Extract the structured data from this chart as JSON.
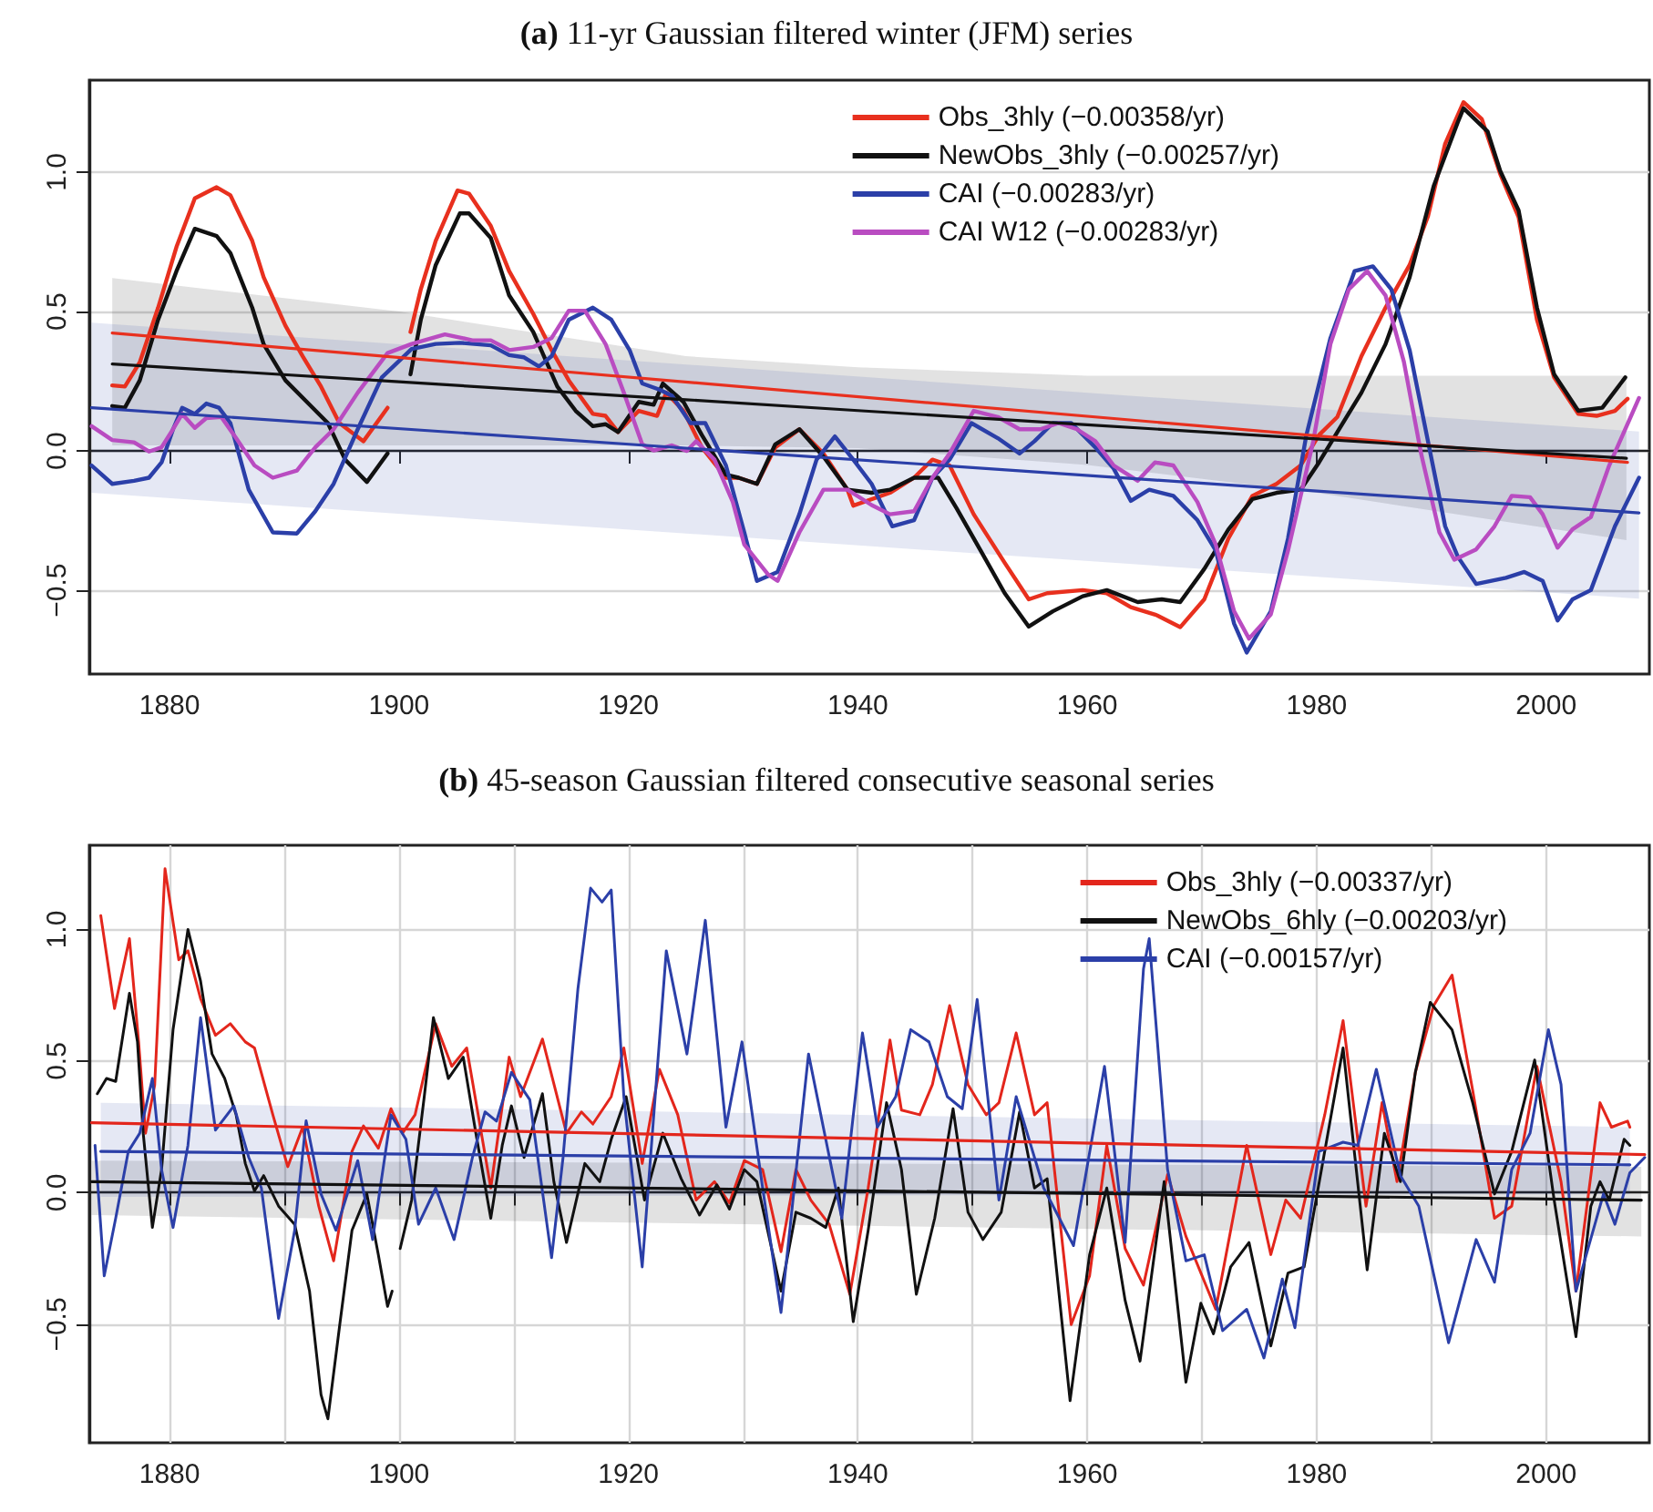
{
  "chart_data": [
    {
      "type": "line",
      "title": "(a) 11-yr Gaussian filtered winter (JFM) series",
      "xlim": [
        1873,
        2009
      ],
      "ylim": [
        -0.8,
        1.33
      ],
      "xticks": [
        1880,
        1900,
        1920,
        1940,
        1960,
        1980,
        2000
      ],
      "yticks": [
        {
          "value": -0.5,
          "label": "−0.5"
        },
        {
          "value": 0,
          "label": "0.0"
        },
        {
          "value": 0.5,
          "label": "0.5"
        },
        {
          "value": 1,
          "label": "1.0"
        }
      ],
      "grid": "y",
      "legend": "top right",
      "series": [
        {
          "name": "Obs_3hly (−0.00358/yr)",
          "color": "#e8301e",
          "x": [
            1875.0,
            1876.1,
            1877.4,
            1879.0,
            1880.6,
            1882.2,
            1884.1,
            1885.3,
            1887.2,
            1888.2,
            1890.1,
            1891.6,
            1893.2,
            1894.8,
            1896.9,
            1899.0,
            1900.0,
            1901.0,
            1901.9,
            1903.2,
            1905.1,
            1906.1,
            1908.0,
            1909.6,
            1911.7,
            1913.3,
            1914.8,
            1916.9,
            1918.0,
            1919.1,
            1920.9,
            1922.5,
            1923.3,
            1924.8,
            1926.4,
            1928.5,
            1929.6,
            1931.2,
            1932.8,
            1934.9,
            1937.0,
            1939.1,
            1939.6,
            1942.8,
            1944.9,
            1946.5,
            1948.0,
            1950.1,
            1952.8,
            1954.9,
            1956.5,
            1959.6,
            1961.7,
            1963.8,
            1966.0,
            1968.1,
            1970.2,
            1972.3,
            1974.4,
            1976.5,
            1978.6,
            1980.2,
            1981.8,
            1983.9,
            1986.0,
            1988.1,
            1989.7,
            1991.2,
            1992.8,
            1994.4,
            1996.0,
            1997.6,
            1999.2,
            2000.7,
            2002.8,
            2004.4,
            2006.0,
            2007.1
          ],
          "values": [
            0.235,
            0.231,
            0.318,
            0.514,
            0.732,
            0.906,
            0.946,
            0.917,
            0.754,
            0.623,
            0.449,
            0.34,
            0.231,
            0.1,
            0.035,
            0.155,
            null,
            0.427,
            0.58,
            0.754,
            0.934,
            0.923,
            0.807,
            0.645,
            0.492,
            0.362,
            0.253,
            0.133,
            0.126,
            0.068,
            0.144,
            0.126,
            0.209,
            0.144,
            0.013,
            -0.096,
            -0.096,
            -0.118,
            0.013,
            0.078,
            -0.009,
            -0.139,
            -0.196,
            -0.15,
            -0.096,
            -0.031,
            -0.052,
            -0.227,
            -0.401,
            -0.532,
            -0.51,
            -0.499,
            -0.51,
            -0.56,
            -0.588,
            -0.632,
            -0.532,
            -0.314,
            -0.161,
            -0.118,
            -0.052,
            0.057,
            0.122,
            0.34,
            0.514,
            0.667,
            0.842,
            1.102,
            1.251,
            1.19,
            0.993,
            0.839,
            0.471,
            0.264,
            0.133,
            0.126,
            0.144,
            0.187
          ]
        },
        {
          "name": "NewObs_3hly (−0.00257/yr)",
          "color": "#111111",
          "x": [
            1875.0,
            1876.1,
            1877.4,
            1879.0,
            1880.6,
            1882.2,
            1884.1,
            1885.3,
            1887.2,
            1888.2,
            1890.1,
            1892.2,
            1893.8,
            1895.3,
            1897.2,
            1899.0,
            1900.0,
            1901.0,
            1901.9,
            1903.2,
            1905.3,
            1906.1,
            1908.0,
            1909.6,
            1911.7,
            1913.8,
            1915.4,
            1916.9,
            1918.0,
            1919.1,
            1920.9,
            1922.2,
            1923.0,
            1924.8,
            1926.4,
            1928.5,
            1929.6,
            1931.2,
            1932.8,
            1934.9,
            1937.0,
            1939.1,
            1941.2,
            1942.8,
            1944.9,
            1947.0,
            1948.6,
            1950.7,
            1952.8,
            1954.9,
            1957.0,
            1959.6,
            1961.7,
            1964.4,
            1966.5,
            1968.1,
            1970.2,
            1972.3,
            1974.4,
            1976.5,
            1978.6,
            1980.2,
            1981.8,
            1983.9,
            1986.0,
            1988.1,
            1990.2,
            1992.3,
            1992.8,
            1994.9,
            1996.0,
            1997.6,
            1999.2,
            2000.7,
            2002.8,
            2004.9,
            2006.9
          ],
          "values": [
            0.161,
            0.155,
            0.253,
            0.471,
            0.645,
            0.797,
            0.771,
            0.71,
            0.514,
            0.383,
            0.253,
            0.166,
            0.1,
            -0.031,
            -0.111,
            -0.009,
            null,
            0.275,
            0.471,
            0.667,
            0.852,
            0.852,
            0.764,
            0.558,
            0.427,
            0.231,
            0.144,
            0.089,
            0.096,
            0.068,
            0.176,
            0.166,
            0.242,
            0.176,
            0.057,
            -0.085,
            -0.096,
            -0.118,
            0.024,
            0.078,
            -0.02,
            -0.139,
            -0.15,
            -0.139,
            -0.096,
            -0.096,
            -0.205,
            -0.357,
            -0.51,
            -0.63,
            -0.575,
            -0.521,
            -0.499,
            -0.542,
            -0.532,
            -0.542,
            -0.423,
            -0.282,
            -0.172,
            -0.15,
            -0.139,
            -0.041,
            0.068,
            0.209,
            0.383,
            0.623,
            0.95,
            1.179,
            1.229,
            1.146,
            1.004,
            0.863,
            0.514,
            0.275,
            0.144,
            0.155,
            0.264
          ]
        },
        {
          "name": "CAI (−0.00283/yr)",
          "color": "#2b3fa8",
          "x": [
            1873.2,
            1875.0,
            1876.9,
            1878.2,
            1879.3,
            1880.3,
            1881.1,
            1882.2,
            1883.2,
            1884.3,
            1885.3,
            1886.9,
            1889.0,
            1891.1,
            1892.7,
            1894.3,
            1896.4,
            1898.5,
            1901.1,
            1903.2,
            1905.3,
            1908.0,
            1909.6,
            1910.9,
            1912.2,
            1913.3,
            1914.8,
            1916.9,
            1918.5,
            1920.1,
            1921.2,
            1922.7,
            1923.8,
            1925.4,
            1926.7,
            1928.5,
            1930.1,
            1931.2,
            1933.0,
            1934.9,
            1936.4,
            1938.0,
            1939.6,
            1941.2,
            1943.0,
            1944.9,
            1946.5,
            1948.0,
            1949.9,
            1952.2,
            1954.1,
            1955.4,
            1957.0,
            1958.6,
            1960.7,
            1962.3,
            1963.8,
            1965.4,
            1967.5,
            1969.6,
            1971.2,
            1972.8,
            1973.9,
            1976.0,
            1977.5,
            1979.1,
            1981.2,
            1983.3,
            1984.9,
            1986.5,
            1988.1,
            1989.7,
            1991.2,
            1992.3,
            1993.9,
            1996.5,
            1998.1,
            1999.7,
            2001.0,
            2002.3,
            2003.9,
            2006.0,
            2008.1
          ],
          "values": [
            -0.052,
            -0.118,
            -0.107,
            -0.096,
            -0.041,
            0.078,
            0.155,
            0.133,
            0.17,
            0.155,
            0.1,
            -0.139,
            -0.292,
            -0.296,
            -0.216,
            -0.118,
            0.078,
            0.264,
            0.366,
            0.384,
            0.388,
            0.379,
            0.344,
            0.336,
            0.303,
            0.34,
            0.471,
            0.514,
            0.471,
            0.362,
            0.242,
            0.22,
            0.198,
            0.1,
            0.1,
            -0.052,
            -0.292,
            -0.466,
            -0.434,
            -0.227,
            -0.031,
            0.052,
            -0.031,
            -0.118,
            -0.27,
            -0.248,
            -0.096,
            -0.031,
            0.1,
            0.046,
            -0.009,
            0.035,
            0.1,
            0.1,
            0.013,
            -0.063,
            -0.179,
            -0.139,
            -0.161,
            -0.248,
            -0.357,
            -0.619,
            -0.723,
            -0.575,
            -0.314,
            0.057,
            0.405,
            0.645,
            0.662,
            0.58,
            0.362,
            0.035,
            -0.27,
            -0.379,
            -0.477,
            -0.455,
            -0.434,
            -0.466,
            -0.608,
            -0.532,
            -0.499,
            -0.27,
            -0.096
          ]
        },
        {
          "name": "CAI W12 (−0.00283/yr)",
          "color": "#b94cc1",
          "x": [
            1873.2,
            1875.0,
            1876.9,
            1878.2,
            1879.3,
            1880.3,
            1881.1,
            1882.2,
            1883.2,
            1884.5,
            1885.8,
            1887.4,
            1889.0,
            1891.1,
            1892.7,
            1894.3,
            1896.4,
            1899.0,
            1901.1,
            1904.0,
            1906.4,
            1908.0,
            1909.6,
            1911.7,
            1913.3,
            1914.8,
            1916.2,
            1918.0,
            1919.6,
            1921.2,
            1922.2,
            1923.8,
            1925.1,
            1925.9,
            1927.5,
            1929.1,
            1930.1,
            1932.2,
            1933.0,
            1934.9,
            1937.0,
            1939.1,
            1941.2,
            1942.8,
            1944.9,
            1946.5,
            1948.0,
            1950.1,
            1952.2,
            1954.1,
            1955.9,
            1957.5,
            1959.1,
            1960.7,
            1962.3,
            1964.4,
            1965.9,
            1967.5,
            1969.6,
            1971.2,
            1972.8,
            1974.1,
            1976.0,
            1977.5,
            1979.7,
            1981.2,
            1982.8,
            1984.4,
            1986.0,
            1987.6,
            1989.1,
            1990.7,
            1992.0,
            1993.9,
            1995.5,
            1997.0,
            1998.6,
            1999.7,
            2001.0,
            2002.3,
            2003.9,
            2005.5,
            2008.1
          ],
          "values": [
            0.089,
            0.039,
            0.031,
            -0.002,
            0.013,
            0.078,
            0.133,
            0.083,
            0.118,
            0.122,
            0.046,
            -0.052,
            -0.096,
            -0.07,
            0.013,
            0.078,
            0.209,
            0.351,
            0.384,
            0.418,
            0.397,
            0.397,
            0.362,
            0.373,
            0.405,
            0.503,
            0.503,
            0.384,
            0.209,
            0.024,
            0.002,
            0.02,
            0.0,
            0.035,
            -0.031,
            -0.183,
            -0.336,
            -0.444,
            -0.466,
            -0.292,
            -0.139,
            -0.139,
            -0.194,
            -0.227,
            -0.216,
            -0.096,
            -0.009,
            0.144,
            0.122,
            0.078,
            0.078,
            0.1,
            0.078,
            0.035,
            -0.052,
            -0.107,
            -0.041,
            -0.052,
            -0.183,
            -0.336,
            -0.575,
            -0.673,
            -0.586,
            -0.357,
            0.035,
            0.384,
            0.58,
            0.645,
            0.558,
            0.32,
            -0.009,
            -0.292,
            -0.39,
            -0.353,
            -0.27,
            -0.161,
            -0.166,
            -0.227,
            -0.347,
            -0.281,
            -0.237,
            -0.052,
            0.19
          ]
        },
        {
          "color": "#e8301e",
          "x": [
            1875.0,
            2007.1
          ],
          "values": [
            0.423,
            -0.041
          ]
        },
        {
          "color": "#111111",
          "x": [
            1875,
            1900,
            1925,
            1940,
            1960,
            1980,
            2007
          ],
          "values": [
            0.312,
            0.248,
            0.184,
            0.145,
            0.094,
            0.043,
            -0.026
          ],
          "lower": [
            0.02,
            0.02,
            0.02,
            0.01,
            -0.05,
            -0.15,
            -0.32
          ],
          "upper": [
            0.62,
            0.5,
            0.34,
            0.3,
            0.27,
            0.27,
            0.27
          ]
        },
        {
          "color": "#2b3fa8",
          "x": [
            1873.2,
            2008.1
          ],
          "values": [
            0.155,
            -0.222
          ],
          "lower": [
            -0.15,
            -0.53
          ],
          "upper": [
            0.46,
            0.07
          ]
        }
      ]
    },
    {
      "type": "line",
      "title": "(b) 45-season Gaussian filtered consecutive seasonal series",
      "xlim": [
        1873,
        2009
      ],
      "ylim": [
        -0.95,
        1.32
      ],
      "xticks": [
        1880,
        {
          "value": 1890,
          "label": null
        },
        1900,
        {
          "value": 1910,
          "label": null
        },
        1920,
        {
          "value": 1930,
          "label": null
        },
        1940,
        {
          "value": 1950,
          "label": null
        },
        1960,
        {
          "value": 1970,
          "label": null
        },
        1980,
        {
          "value": 1990,
          "label": null
        },
        2000
      ],
      "yticks": [
        {
          "value": -0.5,
          "label": "−0.5"
        },
        {
          "value": 0,
          "label": "0.0"
        },
        {
          "value": 0.5,
          "label": "0.5"
        },
        {
          "value": 1,
          "label": "1.0"
        }
      ],
      "grid": true,
      "legend": "top right",
      "series": [
        {
          "name": "Obs_3hly (−0.00337/yr)",
          "color": "#e3261c",
          "x": [
            1874.0,
            1875.2,
            1876.5,
            1877.3,
            1877.9,
            1878.7,
            1879.6,
            1880.8,
            1881.6,
            1882.7,
            1884.0,
            1885.3,
            1886.6,
            1887.4,
            1889.0,
            1890.3,
            1891.6,
            1893.0,
            1894.3,
            1895.9,
            1896.9,
            1898.2,
            1899.3,
            1900.3,
            1901.4,
            1903.2,
            1904.6,
            1905.9,
            1908.0,
            1909.6,
            1910.6,
            1912.5,
            1914.6,
            1915.9,
            1916.9,
            1918.5,
            1919.6,
            1921.2,
            1922.7,
            1924.3,
            1925.9,
            1927.5,
            1928.8,
            1930.1,
            1931.7,
            1933.3,
            1934.6,
            1935.9,
            1937.5,
            1939.3,
            1940.9,
            1942.8,
            1943.8,
            1945.4,
            1946.5,
            1948.0,
            1949.6,
            1951.2,
            1952.3,
            1953.8,
            1955.4,
            1956.5,
            1958.6,
            1960.2,
            1961.7,
            1963.3,
            1964.9,
            1967.0,
            1968.6,
            1971.2,
            1973.9,
            1976.0,
            1977.3,
            1978.6,
            1980.7,
            1982.3,
            1984.3,
            1985.7,
            1987.0,
            1988.6,
            1990.2,
            1991.8,
            1993.6,
            1995.5,
            1997.0,
            1999.2,
            2001.3,
            2002.6,
            2003.9,
            2004.7,
            2005.7,
            2007.1,
            2007.3
          ],
          "values": [
            1.053,
            0.7,
            0.965,
            0.573,
            0.226,
            0.409,
            1.231,
            0.885,
            0.919,
            0.737,
            0.598,
            0.642,
            0.573,
            0.55,
            0.296,
            0.099,
            0.249,
            -0.051,
            -0.259,
            0.157,
            0.254,
            0.169,
            0.319,
            0.226,
            0.296,
            0.642,
            0.48,
            0.55,
            0.018,
            0.515,
            0.365,
            0.584,
            0.226,
            0.307,
            0.261,
            0.365,
            0.55,
            0.111,
            0.469,
            0.296,
            -0.028,
            0.042,
            -0.039,
            0.122,
            0.088,
            -0.224,
            0.088,
            -0.028,
            -0.12,
            -0.386,
            0.018,
            0.58,
            0.314,
            0.296,
            0.411,
            0.711,
            0.411,
            0.296,
            0.342,
            0.607,
            0.296,
            0.342,
            -0.501,
            -0.316,
            0.18,
            -0.212,
            -0.351,
            0.069,
            -0.166,
            -0.443,
            0.18,
            -0.235,
            -0.028,
            -0.097,
            0.296,
            0.654,
            -0.051,
            0.342,
            0.042,
            0.457,
            0.711,
            0.827,
            0.388,
            -0.097,
            -0.051,
            0.48,
            0.042,
            -0.374,
            0.065,
            0.342,
            0.249,
            0.272,
            0.249
          ]
        },
        {
          "name": "NewObs_6hly (−0.00203/yr)",
          "color": "#111111",
          "x": [
            1873.7,
            1874.5,
            1875.3,
            1876.5,
            1877.2,
            1877.7,
            1878.5,
            1879.3,
            1880.3,
            1881.6,
            1882.7,
            1883.7,
            1884.8,
            1885.8,
            1886.6,
            1887.4,
            1888.2,
            1889.5,
            1890.9,
            1892.2,
            1893.2,
            1893.8,
            1894.8,
            1895.9,
            1897.2,
            1898.2,
            1899.0,
            1899.4,
            1899.8,
            1900.1,
            1901.1,
            1902.2,
            1903.0,
            1904.3,
            1905.6,
            1906.7,
            1908.0,
            1909.0,
            1909.8,
            1910.9,
            1912.5,
            1913.5,
            1914.6,
            1916.2,
            1917.5,
            1918.5,
            1919.8,
            1921.4,
            1923.0,
            1924.6,
            1926.2,
            1927.7,
            1928.8,
            1930.1,
            1931.2,
            1933.3,
            1934.6,
            1935.9,
            1937.2,
            1938.3,
            1939.6,
            1940.9,
            1942.5,
            1943.8,
            1945.1,
            1946.7,
            1948.3,
            1949.6,
            1950.9,
            1952.5,
            1954.1,
            1955.4,
            1956.5,
            1958.5,
            1960.2,
            1961.7,
            1963.3,
            1964.6,
            1966.7,
            1968.6,
            1969.9,
            1971.0,
            1972.5,
            1974.1,
            1976.0,
            1977.5,
            1978.9,
            1980.7,
            1982.3,
            1984.4,
            1985.9,
            1987.3,
            1988.6,
            1989.9,
            1991.8,
            1993.6,
            1995.5,
            1997.0,
            1999.0,
            2000.7,
            2002.6,
            2003.9,
            2004.7,
            2005.5,
            2006.8,
            2007.3
          ],
          "values": [
            0.376,
            0.434,
            0.423,
            0.758,
            0.573,
            0.226,
            -0.132,
            0.088,
            0.619,
            1.0,
            0.804,
            0.527,
            0.434,
            0.296,
            0.111,
            0.007,
            0.065,
            -0.051,
            -0.12,
            -0.374,
            -0.767,
            -0.859,
            -0.513,
            -0.143,
            -0.005,
            -0.236,
            -0.432,
            -0.374,
            null,
            -0.212,
            -0.028,
            0.365,
            0.665,
            0.434,
            0.515,
            0.226,
            -0.097,
            0.18,
            0.33,
            0.134,
            0.376,
            0.042,
            -0.189,
            0.111,
            0.042,
            0.203,
            0.365,
            -0.028,
            0.226,
            0.053,
            -0.085,
            0.03,
            -0.062,
            0.088,
            0.042,
            -0.374,
            -0.074,
            -0.097,
            -0.132,
            0.018,
            -0.49,
            -0.143,
            0.342,
            0.088,
            -0.386,
            -0.097,
            0.319,
            -0.074,
            -0.178,
            -0.074,
            0.307,
            0.018,
            0.053,
            -0.79,
            -0.236,
            0.018,
            -0.409,
            -0.64,
            0.042,
            -0.72,
            -0.42,
            -0.536,
            -0.282,
            -0.189,
            -0.582,
            -0.305,
            -0.282,
            0.157,
            0.55,
            -0.293,
            0.226,
            0.042,
            0.457,
            0.723,
            0.619,
            0.342,
            -0.005,
            0.157,
            0.504,
            -0.028,
            -0.547,
            -0.051,
            0.042,
            -0.028,
            0.203,
            0.18
          ]
        },
        {
          "name": "CAI (−0.00157/yr)",
          "color": "#2b3fa8",
          "x": [
            1873.5,
            1874.3,
            1875.3,
            1876.4,
            1877.4,
            1878.5,
            1879.3,
            1880.3,
            1881.6,
            1882.7,
            1884.0,
            1885.6,
            1886.9,
            1888.0,
            1889.5,
            1890.9,
            1891.9,
            1893.2,
            1894.5,
            1896.4,
            1897.7,
            1899.3,
            1900.6,
            1901.7,
            1903.2,
            1904.8,
            1906.4,
            1907.5,
            1908.5,
            1909.8,
            1911.4,
            1913.3,
            1914.3,
            1915.6,
            1916.7,
            1917.7,
            1918.5,
            1919.6,
            1921.2,
            1923.3,
            1925.1,
            1926.7,
            1928.5,
            1929.9,
            1931.7,
            1933.3,
            1935.7,
            1937.2,
            1938.6,
            1940.4,
            1941.7,
            1943.3,
            1944.6,
            1946.2,
            1947.8,
            1949.1,
            1950.4,
            1952.3,
            1953.8,
            1956.2,
            1958.8,
            1961.5,
            1963.3,
            1964.9,
            1965.4,
            1967.0,
            1968.6,
            1970.2,
            1971.8,
            1973.9,
            1975.4,
            1977.0,
            1978.1,
            1980.2,
            1982.3,
            1983.6,
            1985.2,
            1987.3,
            1988.9,
            1991.5,
            1993.9,
            1995.5,
            1997.0,
            1998.6,
            2000.2,
            2001.3,
            2002.6,
            2005.0,
            2006.0,
            2007.3,
            2008.6
          ],
          "values": [
            0.18,
            -0.316,
            -0.097,
            0.157,
            0.226,
            0.434,
            0.088,
            -0.132,
            0.18,
            0.665,
            0.238,
            0.33,
            0.134,
            0.018,
            -0.478,
            -0.143,
            0.273,
            -0.005,
            -0.143,
            0.122,
            -0.178,
            0.296,
            0.203,
            -0.12,
            0.018,
            -0.178,
            0.134,
            0.307,
            0.272,
            0.457,
            0.353,
            -0.247,
            0.134,
            0.776,
            1.157,
            1.104,
            1.15,
            0.365,
            -0.282,
            0.919,
            0.527,
            1.035,
            0.249,
            0.573,
            0.018,
            -0.455,
            0.527,
            0.203,
            -0.097,
            0.607,
            0.249,
            0.365,
            0.619,
            0.573,
            0.365,
            0.319,
            0.734,
            -0.028,
            0.365,
            0.018,
            -0.201,
            0.48,
            -0.189,
            0.85,
            0.965,
            0.088,
            -0.259,
            -0.236,
            -0.524,
            -0.443,
            -0.628,
            -0.328,
            -0.513,
            0.157,
            0.192,
            0.18,
            0.469,
            0.065,
            -0.051,
            -0.57,
            -0.178,
            -0.34,
            0.088,
            0.226,
            0.619,
            0.411,
            -0.374,
            -0.005,
            -0.12,
            0.076,
            0.134
          ]
        },
        {
          "color": "#e3261c",
          "x": [
            1873.2,
            2008.6
          ],
          "values": [
            0.266,
            0.145
          ]
        },
        {
          "color": "#111111",
          "x": [
            1873.2,
            2008.3
          ],
          "values": [
            0.042,
            -0.028
          ],
          "lower": [
            -0.085,
            -0.166
          ],
          "upper": [
            0.122,
            0.099
          ]
        },
        {
          "color": "#2b3fa8",
          "x": [
            1874.0,
            2007.3
          ],
          "values": [
            0.157,
            0.106
          ],
          "lower": [
            -0.016,
            -0.005
          ],
          "upper": [
            0.342,
            0.249
          ]
        }
      ]
    }
  ]
}
